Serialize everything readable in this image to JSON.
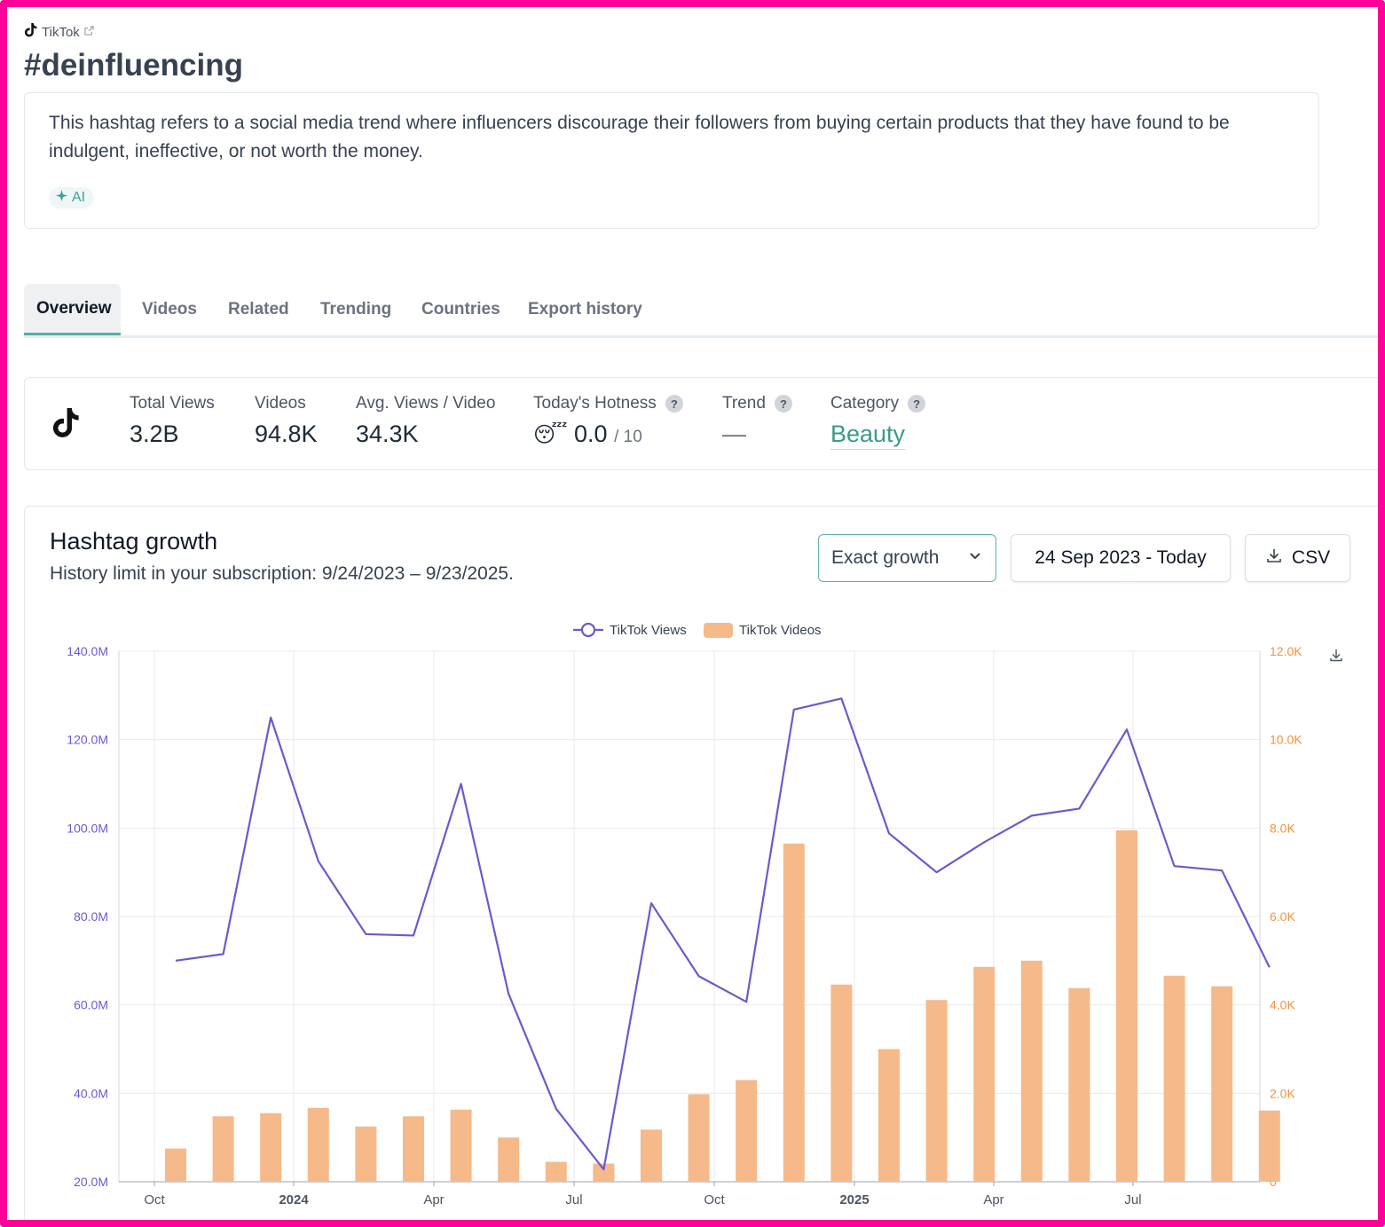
{
  "source": {
    "platform": "TikTok",
    "tiktok_icon": "tiktok-icon",
    "external_icon": "external-link-icon"
  },
  "hashtag": "#deinfluencing",
  "description": "This hashtag refers to a social media trend where influencers discourage their followers from buying certain products that they have found to be indulgent, ineffective, or not worth the money.",
  "ai_badge": "AI",
  "tabs": [
    {
      "label": "Overview",
      "active": true
    },
    {
      "label": "Videos"
    },
    {
      "label": "Related"
    },
    {
      "label": "Trending"
    },
    {
      "label": "Countries"
    },
    {
      "label": "Export history"
    }
  ],
  "stats": {
    "total_views": {
      "label": "Total Views",
      "value": "3.2B"
    },
    "videos": {
      "label": "Videos",
      "value": "94.8K"
    },
    "avg_views": {
      "label": "Avg. Views / Video",
      "value": "34.3K"
    },
    "hotness": {
      "label": "Today's Hotness",
      "emoji": "😴",
      "value": "0.0",
      "max": "/ 10"
    },
    "trend": {
      "label": "Trend",
      "value": "—"
    },
    "category": {
      "label": "Category",
      "value": "Beauty"
    },
    "help": "?"
  },
  "growth": {
    "title": "Hashtag growth",
    "subtitle": "History limit in your subscription: 9/24/2023 – 9/23/2025.",
    "mode": "Exact growth",
    "date_range": "24 Sep 2023 - Today",
    "csv_label": "CSV"
  },
  "colors": {
    "views": "#6a5acd",
    "videos": "#f6b98a",
    "left_axis": "#6a5acd",
    "right_axis": "#f5923e",
    "accent": "#4fb0a7"
  },
  "chart_data": {
    "type": "line+bar",
    "legend": [
      "TikTok Views",
      "TikTok Videos"
    ],
    "legend_position": "top-center",
    "x_ticks": [
      "Oct",
      "2024",
      "Apr",
      "Jul",
      "Oct",
      "2025",
      "Apr",
      "Jul"
    ],
    "y_left": {
      "ticks": [
        "20.0M",
        "40.0M",
        "60.0M",
        "80.0M",
        "100.0M",
        "120.0M",
        "140.0M"
      ],
      "range": [
        20000000,
        140000000
      ]
    },
    "y_right": {
      "ticks": [
        "0",
        "2.0K",
        "4.0K",
        "6.0K",
        "8.0K",
        "10.0K",
        "12.0K"
      ],
      "range": [
        0,
        12000
      ]
    },
    "grid": true,
    "series": [
      {
        "name": "TikTok Views",
        "kind": "line",
        "values": [
          70000000,
          71500000,
          125000000,
          92500000,
          76000000,
          75700000,
          110000000,
          62500000,
          36500000,
          22800000,
          83000000,
          66500000,
          60700000,
          126800000,
          129300000,
          98800000,
          90000000,
          96800000,
          102800000,
          104400000,
          122300000,
          91400000,
          90400000,
          68500000
        ]
      },
      {
        "name": "TikTok Videos",
        "kind": "bar",
        "values": [
          750,
          1480,
          1550,
          1670,
          1250,
          1480,
          1630,
          1000,
          450,
          410,
          1180,
          1980,
          2300,
          7650,
          4460,
          3000,
          4110,
          4860,
          5000,
          4380,
          7950,
          4660,
          4420,
          1610
        ]
      }
    ]
  },
  "chart_download_icon": "download-icon"
}
